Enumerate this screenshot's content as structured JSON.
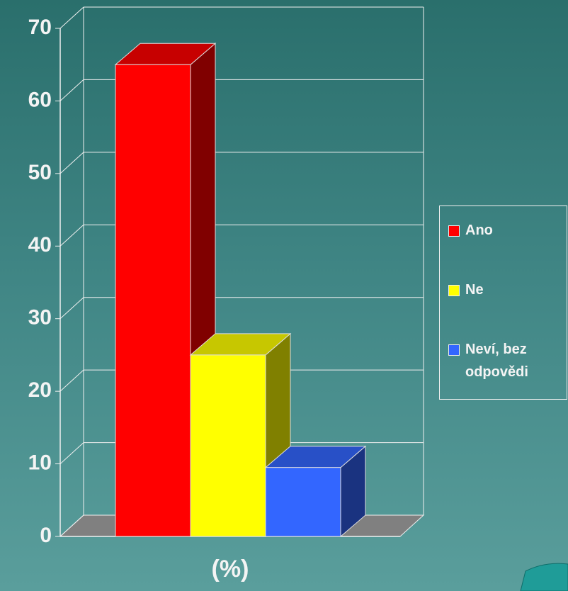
{
  "chart_data": {
    "type": "bar3d",
    "categories": [
      "(%)"
    ],
    "series": [
      {
        "name": "Ano",
        "color": "#ff0000",
        "values": [
          65
        ]
      },
      {
        "name": "Ne",
        "color": "#ffff00",
        "values": [
          25
        ]
      },
      {
        "name": "Neví, bez odpovědi",
        "color": "#3366ff",
        "values": [
          9.5
        ]
      }
    ],
    "ylim": [
      0,
      70
    ],
    "yticks": [
      0,
      10,
      20,
      30,
      40,
      50,
      60,
      70
    ],
    "grid": true
  }
}
